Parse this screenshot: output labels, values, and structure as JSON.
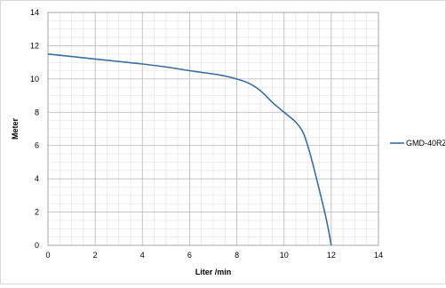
{
  "chart_data": {
    "type": "line",
    "title": "",
    "xlabel": "Liter /min",
    "ylabel": "Meter",
    "xlim": [
      0,
      14
    ],
    "ylim": [
      0,
      14
    ],
    "xticks": [
      0,
      2,
      4,
      6,
      8,
      10,
      12,
      14
    ],
    "yticks": [
      0,
      2,
      4,
      6,
      8,
      10,
      12,
      14
    ],
    "grid": true,
    "minor_grid": true,
    "legend_position": "right",
    "series": [
      {
        "name": "GMD-40RZ",
        "color": "#3a6ea5",
        "x": [
          0,
          1,
          2,
          3,
          4,
          5,
          6,
          7,
          7.5,
          8,
          8.5,
          9,
          9.5,
          10,
          10.5,
          10.8,
          11,
          11.2,
          11.5,
          11.8,
          12
        ],
        "y": [
          11.5,
          11.35,
          11.2,
          11.05,
          10.9,
          10.72,
          10.5,
          10.3,
          10.18,
          10.0,
          9.75,
          9.3,
          8.6,
          8.0,
          7.4,
          6.8,
          6.0,
          5.0,
          3.3,
          1.5,
          0
        ]
      }
    ]
  }
}
